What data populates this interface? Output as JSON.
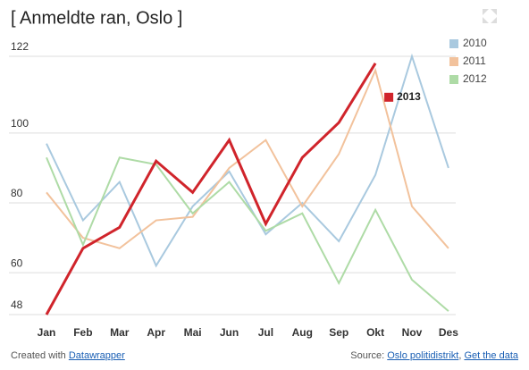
{
  "chart_data": {
    "type": "line",
    "title": "[ Anmeldte ran, Oslo ]",
    "categories": [
      "Jan",
      "Feb",
      "Mar",
      "Apr",
      "Mai",
      "Jun",
      "Jul",
      "Aug",
      "Sep",
      "Okt",
      "Nov",
      "Des"
    ],
    "series": [
      {
        "name": "2010",
        "color": "#a9c9df",
        "values": [
          97,
          75,
          86,
          62,
          79,
          89,
          71,
          80,
          69,
          88,
          122,
          90
        ]
      },
      {
        "name": "2011",
        "color": "#f2c29c",
        "values": [
          83,
          70,
          67,
          75,
          76,
          90,
          98,
          79,
          94,
          118,
          79,
          67
        ]
      },
      {
        "name": "2012",
        "color": "#aedba6",
        "values": [
          93,
          68,
          93,
          91,
          77,
          86,
          72,
          77,
          57,
          78,
          58,
          49
        ]
      },
      {
        "name": "2013",
        "color": "#d0242b",
        "values": [
          48,
          67,
          73,
          92,
          83,
          98,
          74,
          93,
          103,
          120,
          null,
          null
        ]
      }
    ],
    "ylim": [
      48,
      122
    ],
    "yticks": [
      48,
      60,
      80,
      100,
      122
    ],
    "grid": true,
    "legend": "top-right"
  },
  "footer": {
    "created": "Created with",
    "tool": "Datawrapper",
    "source_label": "Source:",
    "source": "Oslo politidistrikt",
    "separator": ",",
    "get_data": "Get the data"
  }
}
